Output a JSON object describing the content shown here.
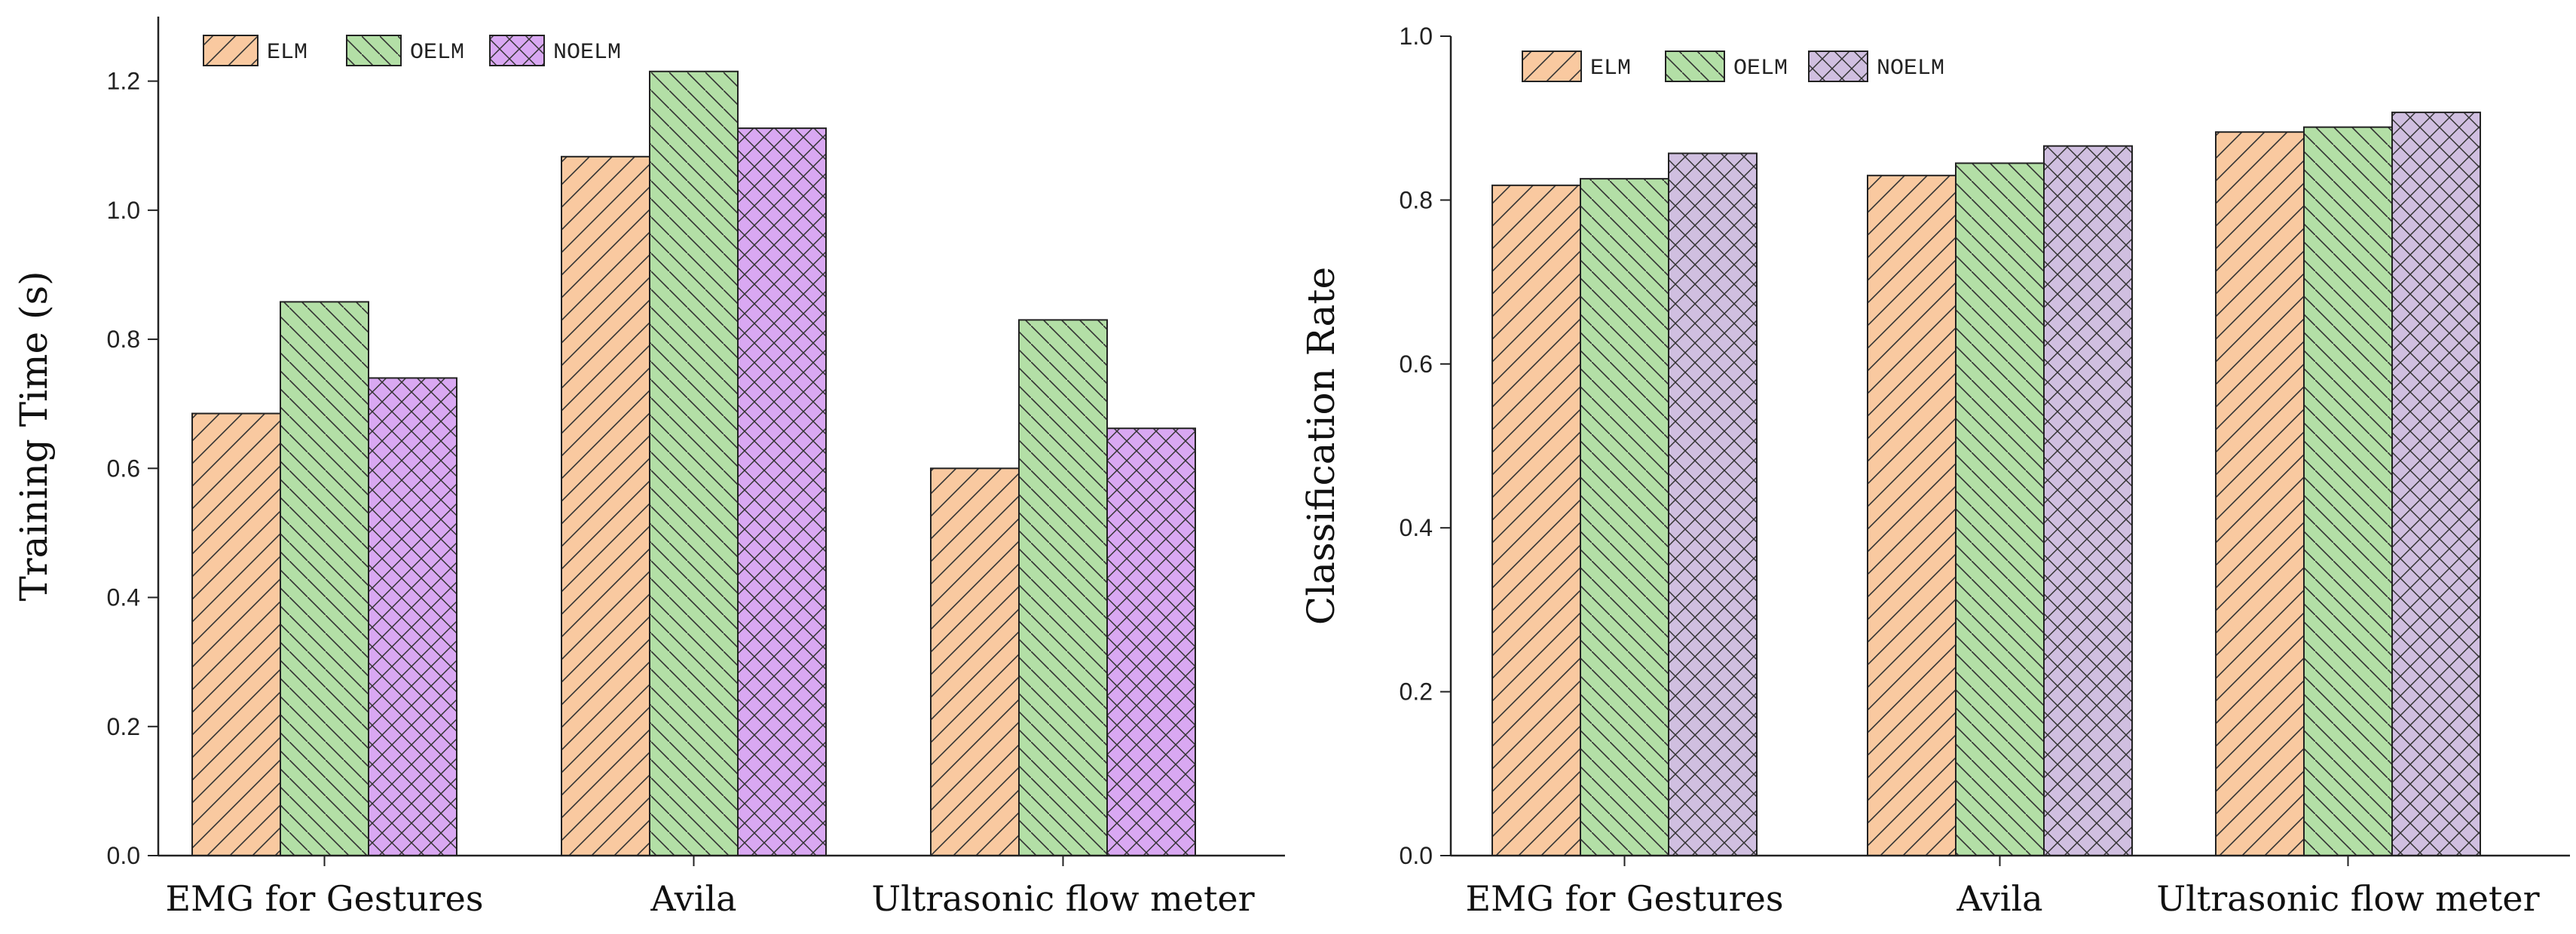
{
  "chart_data": [
    {
      "type": "bar",
      "title": "",
      "xlabel": "",
      "ylabel": "Training Time (s)",
      "ylim": [
        0.0,
        1.3
      ],
      "yticks": [
        "0.0",
        "0.2",
        "0.4",
        "0.6",
        "0.8",
        "1.0",
        "1.2"
      ],
      "yticks_values": [
        0.0,
        0.2,
        0.4,
        0.6,
        0.8,
        1.0,
        1.2
      ],
      "categories": [
        "EMG for Gestures",
        "Avila",
        "Ultrasonic flow meter"
      ],
      "legend_position": "top-left",
      "series": [
        {
          "name": "ELM",
          "values": [
            0.685,
            1.083,
            0.6
          ],
          "color": "#f9c9a0",
          "pattern": "diag-up"
        },
        {
          "name": "OELM",
          "values": [
            0.858,
            1.215,
            0.83
          ],
          "color": "#b3dfa6",
          "pattern": "diag-down"
        },
        {
          "name": "NOELM",
          "values": [
            0.74,
            1.127,
            0.662
          ],
          "color": "#d9a8f2",
          "pattern": "cross"
        }
      ]
    },
    {
      "type": "bar",
      "title": "",
      "xlabel": "",
      "ylabel": "Classification Rate",
      "ylim": [
        0.0,
        1.0
      ],
      "yticks": [
        "0.0",
        "0.2",
        "0.4",
        "0.6",
        "0.8",
        "1.0"
      ],
      "yticks_values": [
        0.0,
        0.2,
        0.4,
        0.6,
        0.8,
        1.0
      ],
      "categories": [
        "EMG for Gestures",
        "Avila",
        "Ultrasonic flow meter"
      ],
      "legend_position": "top-left",
      "series": [
        {
          "name": "ELM",
          "values": [
            0.818,
            0.83,
            0.883
          ],
          "color": "#f9c9a0",
          "pattern": "diag-up"
        },
        {
          "name": "OELM",
          "values": [
            0.826,
            0.845,
            0.889
          ],
          "color": "#b3dfa6",
          "pattern": "diag-down"
        },
        {
          "name": "NOELM",
          "values": [
            0.857,
            0.866,
            0.907
          ],
          "color": "#d0bfe0",
          "pattern": "cross"
        }
      ]
    }
  ]
}
